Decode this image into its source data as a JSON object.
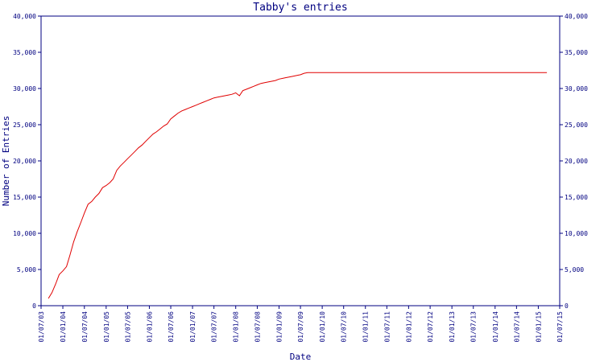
{
  "chart_data": {
    "type": "line",
    "title": "Tabby's entries",
    "xlabel": "Date",
    "ylabel": "Number of Entries",
    "ylim": [
      0,
      40000
    ],
    "yticks": [
      0,
      5000,
      10000,
      15000,
      20000,
      25000,
      30000,
      35000,
      40000
    ],
    "ytick_labels": [
      "0",
      "5,000",
      "10,000",
      "15,000",
      "20,000",
      "25,000",
      "30,000",
      "35,000",
      "40,000"
    ],
    "xlim": [
      "2003-07-01",
      "2015-07-01"
    ],
    "xticks": [
      "2003-07-01",
      "2004-01-01",
      "2004-07-01",
      "2005-01-01",
      "2005-07-01",
      "2006-01-01",
      "2006-07-01",
      "2007-01-01",
      "2007-07-01",
      "2008-01-01",
      "2008-07-01",
      "2009-01-01",
      "2009-07-01",
      "2010-01-01",
      "2010-07-01",
      "2011-01-01",
      "2011-07-01",
      "2012-01-01",
      "2012-07-01",
      "2013-01-01",
      "2013-07-01",
      "2014-01-01",
      "2014-07-01",
      "2015-01-01",
      "2015-07-01"
    ],
    "xtick_labels": [
      "01/07/03",
      "01/01/04",
      "01/07/04",
      "01/01/05",
      "01/07/05",
      "01/01/06",
      "01/07/06",
      "01/01/07",
      "01/07/07",
      "01/01/08",
      "01/07/08",
      "01/01/09",
      "01/07/09",
      "01/01/10",
      "01/07/10",
      "01/01/11",
      "01/07/11",
      "01/01/12",
      "01/07/12",
      "01/01/13",
      "01/07/13",
      "01/01/14",
      "01/07/14",
      "01/01/15",
      "01/07/15"
    ],
    "grid": false,
    "colors": {
      "axis": "#000080",
      "line": "#e00000"
    },
    "series": [
      {
        "points": [
          [
            "2003-09-01",
            1000
          ],
          [
            "2003-10-01",
            1800
          ],
          [
            "2003-11-01",
            3000
          ],
          [
            "2003-12-01",
            4300
          ],
          [
            "2004-01-01",
            4800
          ],
          [
            "2004-02-01",
            5400
          ],
          [
            "2004-03-01",
            7000
          ],
          [
            "2004-04-01",
            8800
          ],
          [
            "2004-05-01",
            10200
          ],
          [
            "2004-06-01",
            11500
          ],
          [
            "2004-07-01",
            12800
          ],
          [
            "2004-08-01",
            14000
          ],
          [
            "2004-09-01",
            14400
          ],
          [
            "2004-10-01",
            15000
          ],
          [
            "2004-11-01",
            15500
          ],
          [
            "2004-12-01",
            16300
          ],
          [
            "2005-01-01",
            16600
          ],
          [
            "2005-02-01",
            17000
          ],
          [
            "2005-03-01",
            17500
          ],
          [
            "2005-04-01",
            18700
          ],
          [
            "2005-05-01",
            19300
          ],
          [
            "2005-06-01",
            19800
          ],
          [
            "2005-07-01",
            20300
          ],
          [
            "2005-08-01",
            20800
          ],
          [
            "2005-09-01",
            21300
          ],
          [
            "2005-10-01",
            21800
          ],
          [
            "2005-11-01",
            22200
          ],
          [
            "2005-12-01",
            22700
          ],
          [
            "2006-01-01",
            23200
          ],
          [
            "2006-02-01",
            23700
          ],
          [
            "2006-03-01",
            24000
          ],
          [
            "2006-04-01",
            24400
          ],
          [
            "2006-05-01",
            24800
          ],
          [
            "2006-06-01",
            25100
          ],
          [
            "2006-07-01",
            25800
          ],
          [
            "2006-08-01",
            26200
          ],
          [
            "2006-09-01",
            26600
          ],
          [
            "2006-10-01",
            26900
          ],
          [
            "2006-11-01",
            27100
          ],
          [
            "2006-12-01",
            27300
          ],
          [
            "2007-01-01",
            27500
          ],
          [
            "2007-02-01",
            27700
          ],
          [
            "2007-03-01",
            27900
          ],
          [
            "2007-04-01",
            28100
          ],
          [
            "2007-05-01",
            28300
          ],
          [
            "2007-06-01",
            28500
          ],
          [
            "2007-07-01",
            28700
          ],
          [
            "2007-08-01",
            28800
          ],
          [
            "2007-09-01",
            28900
          ],
          [
            "2007-10-01",
            29000
          ],
          [
            "2007-11-01",
            29100
          ],
          [
            "2007-12-01",
            29200
          ],
          [
            "2008-01-01",
            29400
          ],
          [
            "2008-02-01",
            29000
          ],
          [
            "2008-03-01",
            29700
          ],
          [
            "2008-04-01",
            29900
          ],
          [
            "2008-05-01",
            30100
          ],
          [
            "2008-06-01",
            30300
          ],
          [
            "2008-07-01",
            30500
          ],
          [
            "2008-08-01",
            30700
          ],
          [
            "2008-09-01",
            30800
          ],
          [
            "2008-10-01",
            30900
          ],
          [
            "2008-11-01",
            31000
          ],
          [
            "2008-12-01",
            31100
          ],
          [
            "2009-01-01",
            31300
          ],
          [
            "2009-02-01",
            31400
          ],
          [
            "2009-03-01",
            31500
          ],
          [
            "2009-04-01",
            31600
          ],
          [
            "2009-05-01",
            31700
          ],
          [
            "2009-06-01",
            31800
          ],
          [
            "2009-07-01",
            31900
          ],
          [
            "2009-08-01",
            32100
          ],
          [
            "2009-09-01",
            32200
          ],
          [
            "2010-01-01",
            32200
          ],
          [
            "2012-01-01",
            32200
          ],
          [
            "2014-01-01",
            32200
          ],
          [
            "2015-03-15",
            32200
          ]
        ]
      }
    ]
  }
}
